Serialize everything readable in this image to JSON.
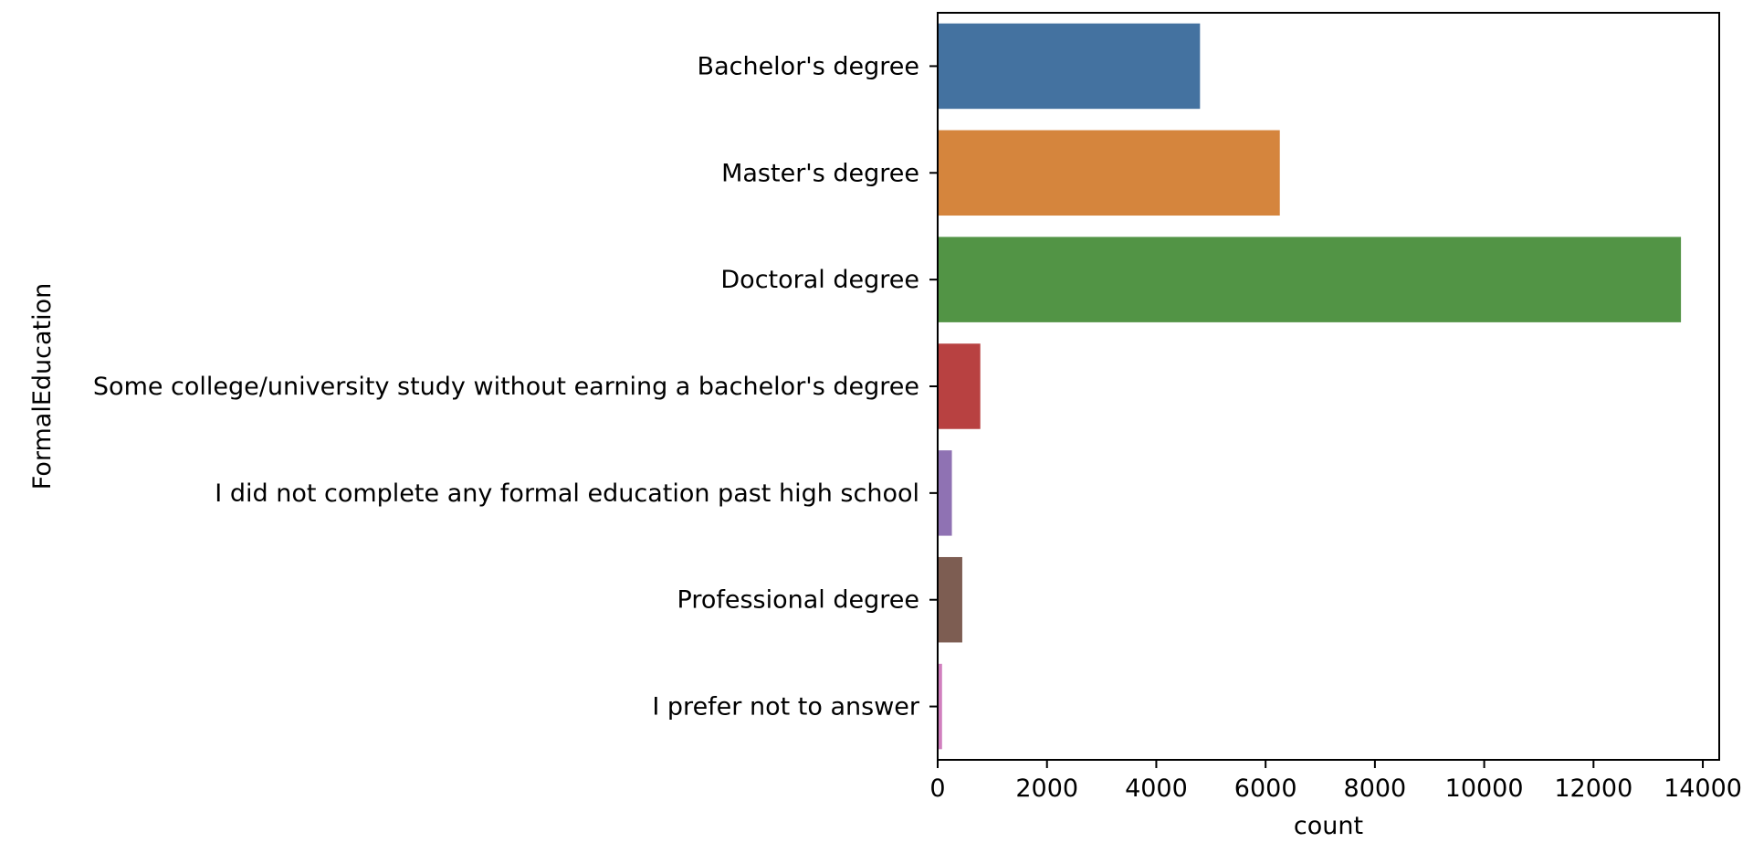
{
  "chart_data": {
    "type": "bar",
    "orientation": "horizontal",
    "categories": [
      "Bachelor's degree",
      "Master's degree",
      "Doctoral degree",
      "Some college/university study without earning a bachelor's degree",
      "I did not complete any formal education past high school",
      "Professional degree",
      "I prefer not to answer"
    ],
    "values": [
      4800,
      6260,
      13600,
      780,
      260,
      450,
      80
    ],
    "colors": [
      "#4472a0",
      "#d5853d",
      "#529445",
      "#b84141",
      "#8f72b3",
      "#7d5d52",
      "#d17fbe"
    ],
    "xlabel": "count",
    "ylabel": "FormalEducation",
    "xlim": [
      0,
      14300
    ],
    "xticks": [
      0,
      2000,
      4000,
      6000,
      8000,
      10000,
      12000,
      14000
    ],
    "grid": false,
    "legend": false
  }
}
